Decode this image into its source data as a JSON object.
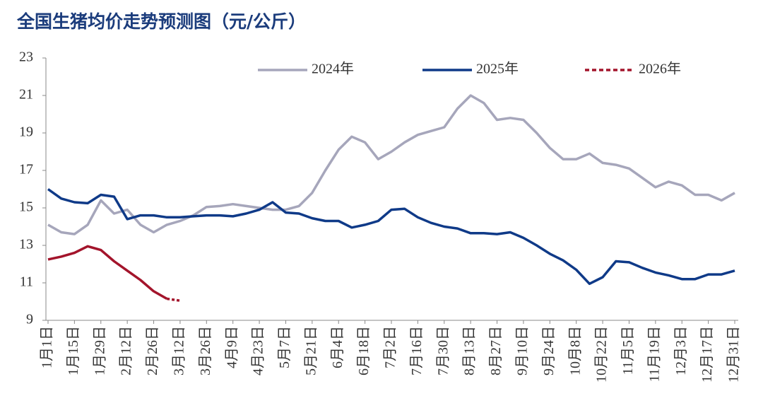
{
  "chart_data": {
    "type": "line",
    "title": "全国生猪均价走势预测图（元/公斤）",
    "categories": [
      "1月1日",
      null,
      "1月15日",
      null,
      "1月29日",
      null,
      "2月12日",
      null,
      "2月26日",
      null,
      "3月12日",
      null,
      "3月26日",
      null,
      "4月9日",
      null,
      "4月23日",
      null,
      "5月7日",
      null,
      "5月21日",
      null,
      "6月4日",
      null,
      "6月18日",
      null,
      "7月2日",
      null,
      "7月16日",
      null,
      "7月30日",
      null,
      "8月13日",
      null,
      "8月27日",
      null,
      "9月10日",
      null,
      "9月24日",
      null,
      "10月8日",
      null,
      "10月22日",
      null,
      "11月5日",
      null,
      "11月19日",
      null,
      "12月3日",
      null,
      "12月17日",
      null,
      "12月31日"
    ],
    "series": [
      {
        "name": "2024年",
        "color": "#a6a6bb",
        "values": [
          14.1,
          13.7,
          13.6,
          14.1,
          15.4,
          14.7,
          14.9,
          14.1,
          13.7,
          14.1,
          14.3,
          14.6,
          15.05,
          15.1,
          15.2,
          15.1,
          15.0,
          14.9,
          14.9,
          15.1,
          15.8,
          17.0,
          18.1,
          18.8,
          18.5,
          17.6,
          18.0,
          18.5,
          18.9,
          19.1,
          19.3,
          20.3,
          21.0,
          20.6,
          19.7,
          19.8,
          19.7,
          19.0,
          18.2,
          17.6,
          17.6,
          17.9,
          17.4,
          17.3,
          17.1,
          16.6,
          16.1,
          16.4,
          16.2,
          15.7,
          15.7,
          15.4,
          15.8
        ]
      },
      {
        "name": "2025年",
        "color": "#0f3a88",
        "values": [
          16.0,
          15.5,
          15.3,
          15.25,
          15.7,
          15.6,
          14.4,
          14.6,
          14.6,
          14.5,
          14.5,
          14.55,
          14.6,
          14.6,
          14.55,
          14.7,
          14.9,
          15.3,
          14.75,
          14.7,
          14.45,
          14.3,
          14.3,
          13.95,
          14.1,
          14.3,
          14.9,
          14.95,
          14.5,
          14.2,
          14.0,
          13.9,
          13.65,
          13.65,
          13.6,
          13.7,
          13.4,
          13.0,
          12.55,
          12.2,
          11.7,
          10.95,
          11.3,
          12.15,
          12.1,
          11.8,
          11.55,
          11.4,
          11.2,
          11.2,
          11.45,
          11.45,
          11.65
        ]
      },
      {
        "name": "2026年",
        "color": "#a3142b",
        "dashed": true,
        "dashed_from": 9,
        "values": [
          12.25,
          12.4,
          12.6,
          12.95,
          12.75,
          12.15,
          11.65,
          11.15,
          10.55,
          10.15,
          10.05,
          null,
          null,
          null,
          null,
          null,
          null,
          null,
          null,
          null,
          null,
          null,
          null,
          null,
          null,
          null,
          null,
          null,
          null,
          null,
          null,
          null,
          null,
          null,
          null,
          null,
          null,
          null,
          null,
          null,
          null,
          null,
          null,
          null,
          null,
          null,
          null,
          null,
          null,
          null,
          null,
          null,
          null
        ]
      }
    ],
    "ylim": [
      9,
      23
    ],
    "yticks": [
      9,
      11,
      13,
      15,
      17,
      19,
      21,
      23
    ],
    "grid": false,
    "legend": "top"
  }
}
